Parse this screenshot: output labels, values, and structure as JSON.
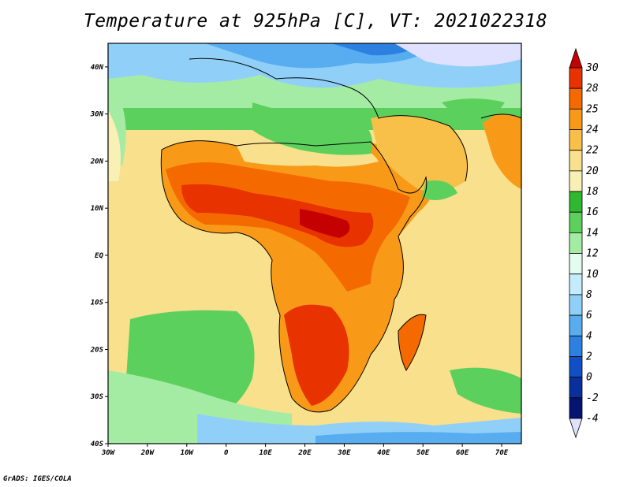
{
  "title": "Temperature at 925hPa [C], VT: 2021022318",
  "footer": "GrADS: IGES/COLA",
  "map": {
    "lon_range": [
      -30,
      75
    ],
    "lat_range": [
      -40,
      45
    ],
    "lon_ticks": [
      {
        "value": -30,
        "label": "30W"
      },
      {
        "value": -20,
        "label": "20W"
      },
      {
        "value": -10,
        "label": "10W"
      },
      {
        "value": 0,
        "label": "0"
      },
      {
        "value": 10,
        "label": "10E"
      },
      {
        "value": 20,
        "label": "20E"
      },
      {
        "value": 30,
        "label": "30E"
      },
      {
        "value": 40,
        "label": "40E"
      },
      {
        "value": 50,
        "label": "50E"
      },
      {
        "value": 60,
        "label": "60E"
      },
      {
        "value": 70,
        "label": "70E"
      }
    ],
    "lat_ticks": [
      {
        "value": 40,
        "label": "40N"
      },
      {
        "value": 30,
        "label": "30N"
      },
      {
        "value": 20,
        "label": "20N"
      },
      {
        "value": 10,
        "label": "10N"
      },
      {
        "value": 0,
        "label": "EQ"
      },
      {
        "value": -10,
        "label": "10S"
      },
      {
        "value": -20,
        "label": "20S"
      },
      {
        "value": -30,
        "label": "30S"
      },
      {
        "value": -40,
        "label": "40S"
      }
    ]
  },
  "colorbar": {
    "labels": [
      "30",
      "28",
      "25",
      "24",
      "22",
      "20",
      "18",
      "16",
      "14",
      "12",
      "10",
      "8",
      "6",
      "4",
      "2",
      "0",
      "-2",
      "-4"
    ],
    "colors": [
      "#c40000",
      "#e83200",
      "#f46a00",
      "#f89a18",
      "#f8c048",
      "#f8e08c",
      "#f8f0b4",
      "#30b830",
      "#5cd05c",
      "#a4eca4",
      "#e4fcf0",
      "#c4ecfc",
      "#90d0f8",
      "#58acf0",
      "#2c80e0",
      "#1050c4",
      "#08309c",
      "#041470",
      "#e0e0ff"
    ]
  },
  "colors": {
    "ocean_warm": "#f8e08c",
    "land_hot": "#e83200",
    "cool_north": "#90d0f8",
    "south_green": "#5cd05c"
  }
}
